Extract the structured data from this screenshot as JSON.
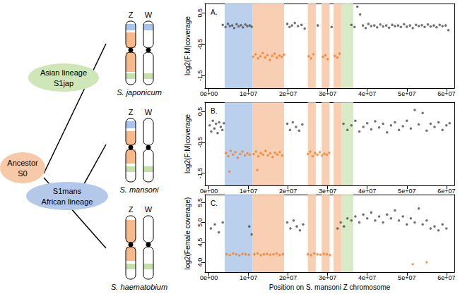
{
  "chart_data": [
    {
      "type": "scatter",
      "title": "A.",
      "ylabel": "log2(F:M)coverage",
      "xlim": [
        -1000000.0,
        62000000.0
      ],
      "xticks": [
        {
          "value": 0,
          "label": "0e+00"
        },
        {
          "value": 10000000.0,
          "label": "1e+07"
        },
        {
          "value": 20000000.0,
          "label": "2e+07"
        },
        {
          "value": 30000000.0,
          "label": "3e+07"
        },
        {
          "value": 40000000.0,
          "label": "4e+07"
        },
        {
          "value": 50000000.0,
          "label": "5e+07"
        },
        {
          "value": 60000000.0,
          "label": "6e+07"
        }
      ],
      "ylim": [
        -1.9,
        0.8
      ],
      "yticks": [
        0.5,
        -0.5,
        -1.5
      ],
      "grid": false,
      "regions": [
        {
          "from": 4000000.0,
          "to": 11000000.0,
          "color": "#a9c4e8"
        },
        {
          "from": 11000000.0,
          "to": 19000000.0,
          "color": "#f6c3a0"
        },
        {
          "from": 25000000.0,
          "to": 27000000.0,
          "color": "#f6c3a0"
        },
        {
          "from": 28500000.0,
          "to": 30500000.0,
          "color": "#f6c3a0"
        },
        {
          "from": 31500000.0,
          "to": 33500000.0,
          "color": "#f6c3a0"
        },
        {
          "from": 33500000.0,
          "to": 36500000.0,
          "color": "#cfe6b8"
        }
      ],
      "series": [
        {
          "color": "#4d4d4d",
          "marker": "circle",
          "x": [
            3500000.0,
            4200000.0,
            4800000.0,
            5300000.0,
            5900000.0,
            6400000.0,
            7000000.0,
            7500000.0,
            8100000.0,
            8600000.0,
            9200000.0,
            9700000.0,
            10300000.0,
            10800000.0,
            19800000.0,
            20400000.0,
            21000000.0,
            21700000.0,
            22500000.0,
            23400000.0,
            24200000.0,
            27500000.0,
            31000000.0,
            36000000.0,
            36800000.0,
            37500000.0,
            38200000.0,
            38900000.0,
            39600000.0,
            40300000.0,
            41000000.0,
            41800000.0,
            42500000.0,
            43300000.0,
            44000000.0,
            44800000.0,
            45500000.0,
            46300000.0,
            47000000.0,
            47800000.0,
            48500000.0,
            49300000.0,
            50000000.0,
            50800000.0,
            51500000.0,
            52300000.0,
            53000000.0,
            53800000.0,
            54500000.0,
            55300000.0,
            56000000.0,
            56800000.0,
            57500000.0,
            58300000.0,
            59000000.0,
            59800000.0,
            60500000.0
          ],
          "values": [
            0.12,
            0.05,
            0.15,
            0.08,
            0.1,
            0.02,
            0.14,
            0.07,
            0.11,
            0.04,
            0.13,
            0.08,
            0.1,
            0.06,
            0.15,
            0.05,
            0.1,
            0.18,
            0.08,
            0.12,
            0,
            0.1,
            0.05,
            0.12,
            0.05,
            0.7,
            0.45,
            0.1,
            0.02,
            0.15,
            0.08,
            0.1,
            0.04,
            0.13,
            0.07,
            0.1,
            0.03,
            0.12,
            0.08,
            0.1,
            0.05,
            0.14,
            0.06,
            0.1,
            0.02,
            0.12,
            0.08,
            0.11,
            0.05,
            0.13,
            0.07,
            0.1,
            0.04,
            0.12,
            0.08,
            0.1,
            -0.05
          ]
        },
        {
          "color": "#f07e2c",
          "marker": "circle",
          "x": [
            11200000.0,
            11800000.0,
            12400000.0,
            13000000.0,
            13600000.0,
            14200000.0,
            14800000.0,
            15400000.0,
            16000000.0,
            16600000.0,
            17200000.0,
            17800000.0,
            18400000.0,
            19000000.0,
            25200000.0,
            25800000.0,
            26400000.0,
            28800000.0,
            29400000.0,
            30000000.0,
            31800000.0,
            32400000.0,
            33000000.0
          ],
          "values": [
            -0.9,
            -0.82,
            -0.95,
            -0.88,
            -0.78,
            -0.92,
            -0.85,
            -1.0,
            -0.87,
            -0.8,
            -0.93,
            -0.86,
            -0.9,
            -0.83,
            -0.88,
            -0.95,
            -0.82,
            -0.9,
            -0.85,
            -0.97,
            -0.87,
            -0.92,
            -0.8
          ]
        }
      ]
    },
    {
      "type": "scatter",
      "title": "B.",
      "ylabel": "log2(F:M)coverage",
      "xlim": [
        -1000000.0,
        62000000.0
      ],
      "xticks": [
        {
          "value": 0,
          "label": "0e+00"
        },
        {
          "value": 10000000.0,
          "label": "1e+07"
        },
        {
          "value": 20000000.0,
          "label": "2e+07"
        },
        {
          "value": 30000000.0,
          "label": "3e+07"
        },
        {
          "value": 40000000.0,
          "label": "4e+07"
        },
        {
          "value": 50000000.0,
          "label": "5e+07"
        },
        {
          "value": 60000000.0,
          "label": "6e+07"
        }
      ],
      "ylim": [
        -1.9,
        0.8
      ],
      "yticks": [
        0.5,
        -0.5,
        -1.5
      ],
      "grid": false,
      "regions": [
        {
          "from": 4000000.0,
          "to": 11000000.0,
          "color": "#a9c4e8"
        },
        {
          "from": 11000000.0,
          "to": 19000000.0,
          "color": "#f6c3a0"
        },
        {
          "from": 25000000.0,
          "to": 27000000.0,
          "color": "#f6c3a0"
        },
        {
          "from": 28500000.0,
          "to": 30500000.0,
          "color": "#f6c3a0"
        },
        {
          "from": 31500000.0,
          "to": 33500000.0,
          "color": "#f6c3a0"
        },
        {
          "from": 33500000.0,
          "to": 36500000.0,
          "color": "#cfe6b8"
        }
      ],
      "series": [
        {
          "color": "#4d4d4d",
          "marker": "circle",
          "x": [
            200000.0,
            600000.0,
            1000000.0,
            1400000.0,
            1800000.0,
            2200000.0,
            2600000.0,
            3000000.0,
            3400000.0,
            3800000.0,
            19800000.0,
            20500000.0,
            21200000.0,
            22000000.0,
            22800000.0,
            23600000.0,
            34000000.0,
            35000000.0,
            36000000.0,
            37000000.0,
            38000000.0,
            39000000.0,
            40000000.0,
            41000000.0,
            42000000.0,
            43000000.0,
            44000000.0,
            45000000.0,
            46000000.0,
            47000000.0,
            48000000.0,
            49000000.0,
            50000000.0,
            51000000.0,
            52000000.0,
            53000000.0,
            54000000.0,
            55000000.0,
            56000000.0,
            57000000.0,
            58000000.0,
            59000000.0,
            60000000.0,
            60800000.0
          ],
          "values": [
            0.05,
            -0.15,
            0.2,
            -0.05,
            0.1,
            -0.2,
            0.15,
            0,
            -0.1,
            0.12,
            0.1,
            -0.1,
            0.15,
            0,
            -0.12,
            0.08,
            0.1,
            -0.1,
            0.05,
            0.2,
            -0.15,
            0,
            0.12,
            -0.08,
            0.18,
            -0.02,
            0.1,
            -0.18,
            0.05,
            0.15,
            -0.1,
            0.02,
            0.2,
            -0.05,
            0.55,
            0.08,
            0.45,
            -0.12,
            0.1,
            0,
            0.15,
            -0.1,
            0.05,
            0.12
          ]
        },
        {
          "color": "#f07e2c",
          "marker": "circle",
          "x": [
            4300000.0,
            4900000.0,
            5500000.0,
            6100000.0,
            6700000.0,
            7300000.0,
            7900000.0,
            8500000.0,
            9100000.0,
            9700000.0,
            10300000.0,
            5200000.0,
            11300000.0,
            11900000.0,
            12500000.0,
            13100000.0,
            13700000.0,
            14300000.0,
            14900000.0,
            15500000.0,
            16100000.0,
            16700000.0,
            17300000.0,
            17900000.0,
            18500000.0,
            12200000.0,
            25000000.0,
            25600000.0,
            26200000.0,
            26800000.0,
            27400000.0,
            28000000.0,
            28600000.0,
            29200000.0,
            29800000.0,
            30400000.0
          ],
          "values": [
            -0.85,
            -0.95,
            -0.78,
            -0.9,
            -0.82,
            -1.0,
            -0.88,
            -0.8,
            -0.93,
            -0.86,
            -0.9,
            -1.45,
            -0.88,
            -0.8,
            -0.95,
            -0.85,
            -0.9,
            -0.78,
            -0.92,
            -0.86,
            -0.98,
            -0.84,
            -0.9,
            -0.82,
            -0.93,
            -1.4,
            -0.88,
            -0.8,
            -0.95,
            -0.85,
            -0.9,
            -0.82,
            -0.93,
            -0.87,
            -0.9,
            -0.84
          ]
        }
      ]
    },
    {
      "type": "scatter",
      "title": "C.",
      "ylabel": "log2(Female coverage)",
      "xlabel": "Position on S. mansoni Z chromosome",
      "xlim": [
        -1000000.0,
        62000000.0
      ],
      "xticks": [
        {
          "value": 0,
          "label": "0e+00"
        },
        {
          "value": 10000000.0,
          "label": "1e+07"
        },
        {
          "value": 20000000.0,
          "label": "2e+07"
        },
        {
          "value": 30000000.0,
          "label": "3e+07"
        },
        {
          "value": 40000000.0,
          "label": "4e+07"
        },
        {
          "value": 50000000.0,
          "label": "5e+07"
        },
        {
          "value": 60000000.0,
          "label": "6e+07"
        }
      ],
      "ylim": [
        3.75,
        5.7
      ],
      "yticks": [
        {
          "value": 4,
          "label": "4.0"
        },
        4.5,
        {
          "value": 5,
          "label": "5.0"
        },
        5.5
      ],
      "grid": false,
      "regions": [
        {
          "from": 4000000.0,
          "to": 11000000.0,
          "color": "#a9c4e8"
        },
        {
          "from": 11000000.0,
          "to": 19000000.0,
          "color": "#f6c3a0"
        },
        {
          "from": 25000000.0,
          "to": 27000000.0,
          "color": "#f6c3a0"
        },
        {
          "from": 28500000.0,
          "to": 30500000.0,
          "color": "#f6c3a0"
        },
        {
          "from": 31500000.0,
          "to": 33500000.0,
          "color": "#f6c3a0"
        },
        {
          "from": 33500000.0,
          "to": 36500000.0,
          "color": "#cfe6b8"
        }
      ],
      "series": [
        {
          "color": "#4d4d4d",
          "marker": "circle",
          "x": [
            500000.0,
            1500000.0,
            2500000.0,
            3500000.0,
            10200000.0,
            10800000.0,
            19800000.0,
            20600000.0,
            21400000.0,
            22200000.0,
            23000000.0,
            23800000.0,
            32500000.0,
            33300000.0,
            34100000.0,
            35000000.0,
            36000000.0,
            37000000.0,
            38000000.0,
            39000000.0,
            40000000.0,
            41000000.0,
            42000000.0,
            43000000.0,
            44000000.0,
            45000000.0,
            46000000.0,
            47000000.0,
            48000000.0,
            49000000.0,
            50000000.0,
            51000000.0,
            52000000.0,
            53000000.0,
            54000000.0,
            55000000.0,
            56000000.0,
            57000000.0,
            58000000.0,
            59000000.0,
            60000000.0
          ],
          "values": [
            4.85,
            4.95,
            4.75,
            5.0,
            4.9,
            4.7,
            5.0,
            4.85,
            5.05,
            4.9,
            4.8,
            4.95,
            4.85,
            5.0,
            4.9,
            5.1,
            5.05,
            5.15,
            5.0,
            5.2,
            5.1,
            5.25,
            5.05,
            5.15,
            5.0,
            5.2,
            5.1,
            5.3,
            5.05,
            5.15,
            4.95,
            5.1,
            5.0,
            5.35,
            4.95,
            5.05,
            4.85,
            4.9,
            4.8,
            4.95,
            4.85
          ]
        },
        {
          "color": "#f07e2c",
          "marker": "circle",
          "x": [
            4500000.0,
            5300000.0,
            6100000.0,
            6900000.0,
            7700000.0,
            8500000.0,
            9300000.0,
            10100000.0,
            11500000.0,
            12300000.0,
            13100000.0,
            13900000.0,
            14700000.0,
            15500000.0,
            16300000.0,
            17100000.0,
            17900000.0,
            18700000.0,
            25000000.0,
            25800000.0,
            26600000.0,
            27400000.0,
            28200000.0,
            29000000.0,
            29800000.0,
            30600000.0,
            51500000.0,
            55000000.0
          ],
          "values": [
            4.2,
            4.18,
            4.22,
            4.2,
            4.17,
            4.21,
            4.2,
            4.19,
            4.2,
            4.22,
            4.18,
            4.2,
            4.21,
            4.19,
            4.2,
            4.22,
            4.18,
            4.2,
            4.2,
            4.18,
            4.22,
            4.2,
            4.19,
            4.21,
            4.2,
            4.18,
            3.95,
            4.0
          ]
        }
      ]
    }
  ],
  "diagram": {
    "nodes": [
      {
        "lines": [
          "Asian lineage",
          "S1jap"
        ]
      },
      {
        "lines": [
          "Ancestor",
          "S0"
        ]
      },
      {
        "lines": [
          "S1mans",
          "African lineage"
        ]
      }
    ],
    "species": [
      "S. japonicum",
      "S. mansoni",
      "S. haematobium"
    ],
    "chromosomes": [
      "Z",
      "W"
    ]
  }
}
